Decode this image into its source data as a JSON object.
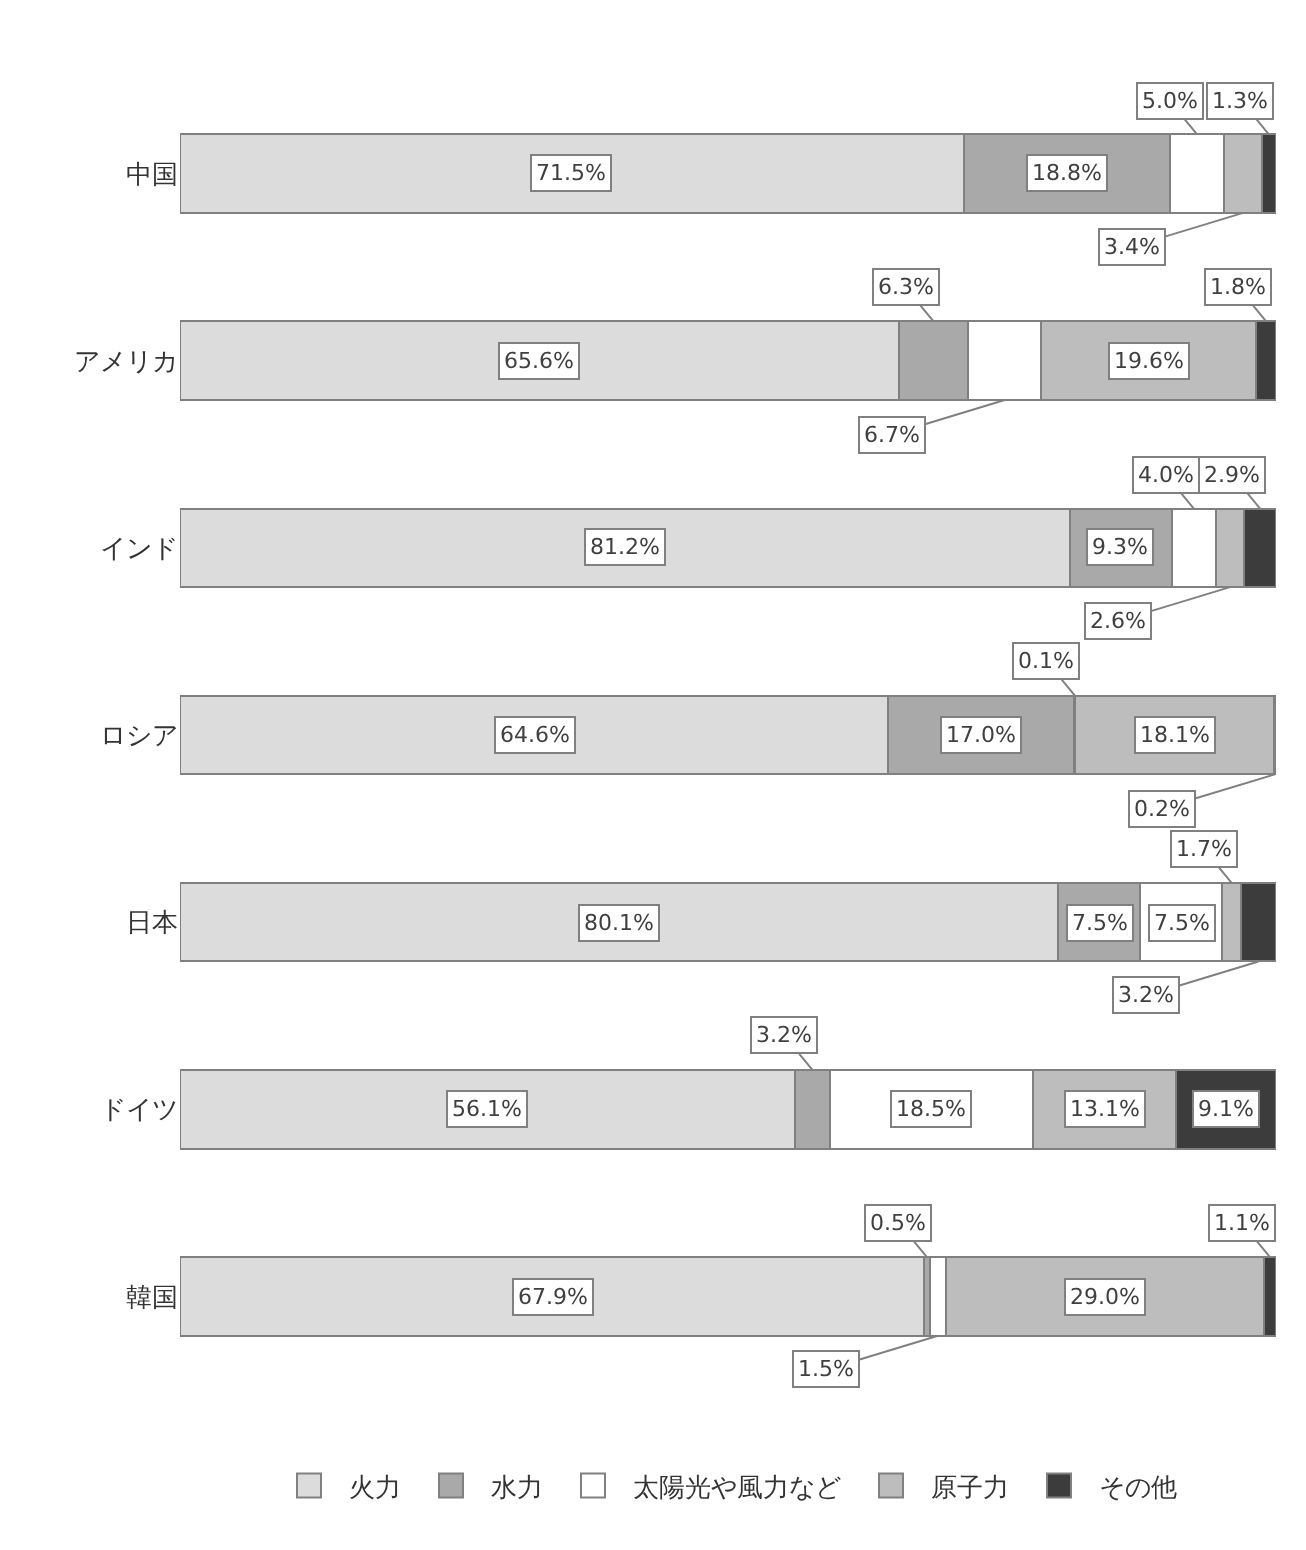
{
  "chart_data": {
    "type": "bar",
    "orientation": "horizontal",
    "stacked": true,
    "legend": "bottom",
    "categories": [
      "中国",
      "アメリカ",
      "インド",
      "ロシア",
      "日本",
      "ドイツ",
      "韓国"
    ],
    "series": [
      {
        "name": "火力",
        "color": "#dcdcdc",
        "values": [
          71.5,
          65.6,
          81.2,
          64.6,
          80.1,
          56.1,
          67.9
        ],
        "value_labels": [
          "71.5%",
          "65.6%",
          "81.2%",
          "64.6%",
          "80.1%",
          "56.1%",
          "67.9%"
        ]
      },
      {
        "name": "水力",
        "color": "#a9a9a9",
        "values": [
          18.8,
          6.3,
          9.3,
          17.0,
          7.5,
          3.2,
          0.5
        ],
        "value_labels": [
          "18.8%",
          "6.3%",
          "9.3%",
          "17.0%",
          "7.5%",
          "3.2%",
          "0.5%"
        ]
      },
      {
        "name": "太陽光や風力など",
        "color": "#ffffff",
        "values": [
          5.0,
          6.7,
          4.0,
          0.1,
          7.5,
          18.5,
          1.5
        ],
        "value_labels": [
          "5.0%",
          "6.7%",
          "4.0%",
          "0.1%",
          "7.5%",
          "18.5%",
          "1.5%"
        ]
      },
      {
        "name": "原子力",
        "color": "#bdbdbd",
        "values": [
          3.4,
          19.6,
          2.6,
          18.1,
          1.7,
          13.1,
          29.0
        ],
        "value_labels": [
          "3.4%",
          "19.6%",
          "2.6%",
          "18.1%",
          "1.7%",
          "13.1%",
          "29.0%"
        ]
      },
      {
        "name": "その他",
        "color": "#3c3c3c",
        "values": [
          1.3,
          1.8,
          2.9,
          0.2,
          3.2,
          9.1,
          1.1
        ],
        "value_labels": [
          "1.3%",
          "1.8%",
          "2.9%",
          "0.2%",
          "3.2%",
          "9.1%",
          "1.1%"
        ]
      }
    ]
  }
}
